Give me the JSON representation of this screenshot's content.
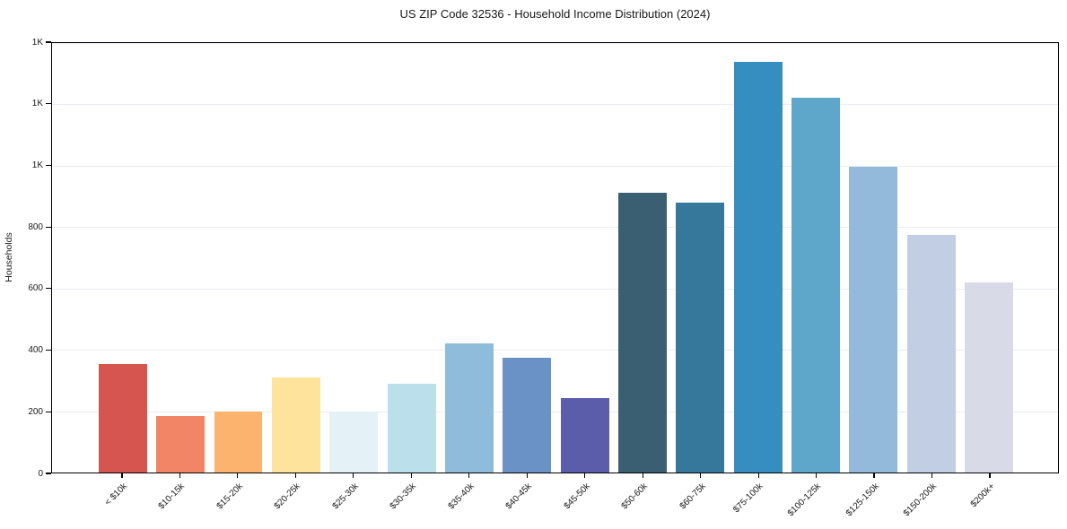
{
  "chart_data": {
    "type": "bar",
    "title": "US ZIP Code 32536 - Household Income Distribution (2024)",
    "xlabel": "",
    "ylabel": "Households",
    "ylim": [
      0,
      1400
    ],
    "grid": true,
    "legend": false,
    "y_ticks": [
      {
        "value": 0,
        "label": "0"
      },
      {
        "value": 200,
        "label": "200"
      },
      {
        "value": 400,
        "label": "400"
      },
      {
        "value": 600,
        "label": "600"
      },
      {
        "value": 800,
        "label": "800"
      },
      {
        "value": 1000,
        "label": "1K"
      },
      {
        "value": 1200,
        "label": "1K"
      },
      {
        "value": 1400,
        "label": "1K"
      }
    ],
    "categories": [
      "< $10k",
      "$10-15k",
      "$15-20k",
      "$20-25k",
      "$25-30k",
      "$30-35k",
      "$35-40k",
      "$40-45k",
      "$45-50k",
      "$50-60k",
      "$60-75k",
      "$75-100k",
      "$100-125k",
      "$125-150k",
      "$150-200k",
      "$200k+"
    ],
    "values": [
      355,
      185,
      200,
      309,
      200,
      288,
      421,
      374,
      242,
      913,
      881,
      1338,
      1221,
      997,
      776,
      621
    ],
    "bar_colors": [
      "#d6564f",
      "#f18565",
      "#fbb36e",
      "#fde39c",
      "#e4f1f7",
      "#bcdfec",
      "#90bcdb",
      "#6a92c6",
      "#5b5caa",
      "#3b5f72",
      "#35789c",
      "#368dbf",
      "#5ea7cb",
      "#93badb",
      "#c1cee4",
      "#d8dae8"
    ],
    "grid_color": "#ececf2",
    "axis_color": "#000000",
    "text_color": "#1a1a1a"
  }
}
